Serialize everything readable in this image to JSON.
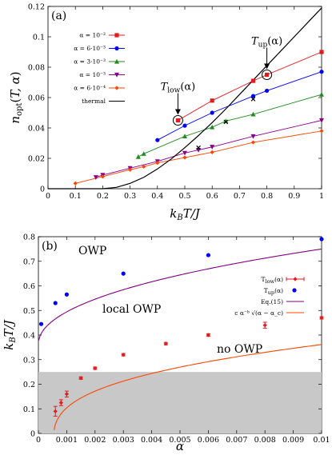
{
  "chart_data": [
    {
      "panel_label": "(a)",
      "type": "line",
      "xlabel": "k_BT/J",
      "ylabel": "n_opt(T, α)",
      "xlim": [
        0,
        1
      ],
      "ylim": [
        0,
        0.12
      ],
      "xticks": [
        "0",
        "0.1",
        "0.2",
        "0.3",
        "0.4",
        "0.5",
        "0.6",
        "0.7",
        "0.8",
        "0.9",
        "1"
      ],
      "yticks": [
        "0",
        "0.02",
        "0.04",
        "0.06",
        "0.08",
        "0.1",
        "0.12"
      ],
      "grid": false,
      "legend_position": "top-left",
      "series": [
        {
          "name": "α = 10⁻²",
          "color": "#e41a1c",
          "marker": "square",
          "x": [
            0.475,
            0.6,
            0.75,
            0.8,
            1.0
          ],
          "y": [
            0.045,
            0.058,
            0.071,
            0.075,
            0.09
          ]
        },
        {
          "name": "α = 6·10⁻³",
          "color": "#0000ff",
          "marker": "circle",
          "x": [
            0.4,
            0.5,
            0.6,
            0.75,
            0.8,
            1.0
          ],
          "y": [
            0.032,
            0.0415,
            0.05,
            0.061,
            0.0645,
            0.077
          ]
        },
        {
          "name": "α = 3·10⁻³",
          "color": "#228b22",
          "marker": "triangle-up",
          "x": [
            0.33,
            0.35,
            0.5,
            0.6,
            0.65,
            0.75,
            1.0
          ],
          "y": [
            0.021,
            0.023,
            0.0345,
            0.0405,
            0.0445,
            0.049,
            0.062
          ]
        },
        {
          "name": "α = 10⁻³",
          "color": "#8b008b",
          "marker": "triangle-down",
          "x": [
            0.175,
            0.2,
            0.3,
            0.4,
            0.5,
            0.55,
            0.6,
            0.75,
            1.0
          ],
          "y": [
            0.0075,
            0.009,
            0.0135,
            0.018,
            0.0235,
            0.0255,
            0.0275,
            0.0345,
            0.045
          ]
        },
        {
          "name": "α = 6·10⁻⁴",
          "color": "#ff4500",
          "marker": "diamond",
          "x": [
            0.1,
            0.2,
            0.3,
            0.35,
            0.4,
            0.5,
            0.6,
            0.75,
            1.0
          ],
          "y": [
            0.0035,
            0.008,
            0.0125,
            0.0145,
            0.017,
            0.0205,
            0.024,
            0.0305,
            0.038
          ]
        },
        {
          "name": "thermal",
          "color": "#000000",
          "marker": "none",
          "x": [
            0.2,
            0.25,
            0.3,
            0.35,
            0.4,
            0.45,
            0.5,
            0.55,
            0.6,
            0.65,
            0.7,
            0.75,
            0.8,
            0.85,
            0.9,
            0.95,
            1.0
          ],
          "y": [
            0.0,
            0.0009,
            0.0035,
            0.0075,
            0.013,
            0.0195,
            0.027,
            0.035,
            0.0435,
            0.0525,
            0.062,
            0.0715,
            0.081,
            0.0905,
            0.1,
            0.1095,
            0.119
          ]
        }
      ],
      "markers_on_thermal": {
        "x": [
          0.55,
          0.65,
          0.75
        ],
        "y": [
          0.027,
          0.044,
          0.059
        ]
      },
      "annotations": [
        {
          "text": "T_low(α)",
          "x": 0.475,
          "y": 0.045
        },
        {
          "text": "T_up(α)",
          "x": 0.8,
          "y": 0.075
        }
      ]
    },
    {
      "panel_label": "(b)",
      "type": "line",
      "xlabel": "α",
      "ylabel": "k_BT/J",
      "xlim": [
        0,
        0.01
      ],
      "ylim": [
        0,
        0.8
      ],
      "xticks": [
        "0",
        "0.001",
        "0.002",
        "0.003",
        "0.004",
        "0.005",
        "0.006",
        "0.007",
        "0.008",
        "0.009",
        "0.01"
      ],
      "yticks": [
        "0",
        "0.1",
        "0.2",
        "0.3",
        "0.4",
        "0.5",
        "0.6",
        "0.7",
        "0.8"
      ],
      "grid": false,
      "legend_position": "right",
      "shaded_region": {
        "y_from": 0,
        "y_to": 0.25,
        "color": "#c8c8c8"
      },
      "region_labels": [
        "OWP",
        "local OWP",
        "no OWP"
      ],
      "series": [
        {
          "name": "T_low(α)",
          "color": "#e41a1c",
          "marker": "diamond-errorbar",
          "x": [
            0.0006,
            0.0008,
            0.001,
            0.0015,
            0.002,
            0.003,
            0.0045,
            0.006,
            0.008,
            0.01
          ],
          "y": [
            0.09,
            0.125,
            0.16,
            0.225,
            0.265,
            0.32,
            0.365,
            0.4,
            0.44,
            0.47
          ],
          "err": [
            0.02,
            0.012,
            0.012,
            0.005,
            0.005,
            0.005,
            0.005,
            0.005,
            0.012,
            0.005
          ]
        },
        {
          "name": "T_up(α)",
          "color": "#0000ff",
          "marker": "circle",
          "x": [
            0.0001,
            0.0006,
            0.001,
            0.003,
            0.006,
            0.01
          ],
          "y": [
            0.445,
            0.53,
            0.565,
            0.65,
            0.725,
            0.79
          ]
        },
        {
          "name": "Eq.(15)",
          "color": "#800080",
          "marker": "none"
        },
        {
          "name": "c α⁻ᵇ √(α − α_c)",
          "color": "#ff4500",
          "marker": "none"
        }
      ]
    }
  ]
}
